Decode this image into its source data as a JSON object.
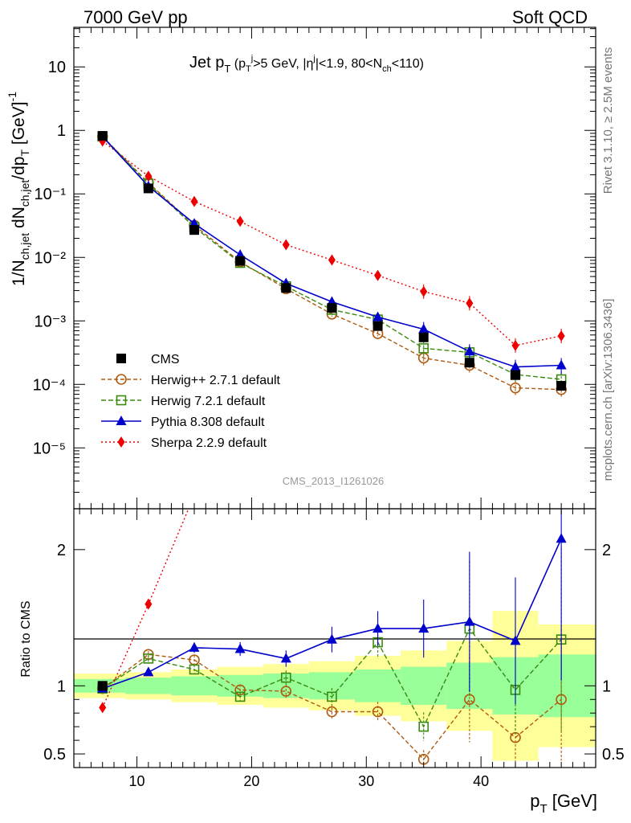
{
  "header": {
    "left": "7000 GeV pp",
    "right": "Soft QCD",
    "side_top": "Rivet 3.1.10, ≥ 2.5M events",
    "side_bottom": "mcplots.cern.ch [arXiv:1306.3436]",
    "analysis_id": "CMS_2013_I1261026"
  },
  "chart_data": {
    "type": "line",
    "title": "Jet pT (pTj>5 GeV, |ηj|<1.9, 80<Nch<110)",
    "x": [
      7,
      11,
      15,
      19,
      23,
      27,
      31,
      35,
      39,
      43,
      47
    ],
    "xlabel": "pT [GeV]",
    "xlim": [
      4.5,
      50
    ],
    "xticks": [
      10,
      20,
      30,
      40
    ],
    "main": {
      "ylabel": "1/Nch,jet dNch,jet/dpT [GeV]⁻¹",
      "yscale": "log",
      "ylim": [
        1.1e-06,
        42
      ],
      "ytick_labels": [
        "10⁻⁵",
        "10⁻⁴",
        "10⁻³",
        "10⁻²",
        "10⁻¹",
        "1",
        "10"
      ],
      "series": [
        {
          "name": "CMS",
          "color": "#000000",
          "marker": "square-filled",
          "values": [
            0.82,
            0.122,
            0.027,
            0.0088,
            0.0033,
            0.0016,
            0.00083,
            0.00055,
            0.00022,
            0.00014,
            9.5e-05
          ]
        },
        {
          "name": "Herwig++ 2.7.1 default",
          "color": "#b05a10",
          "marker": "circle-open",
          "values": [
            0.8,
            0.15,
            0.032,
            0.0085,
            0.0032,
            0.00128,
            0.00063,
            0.00026,
            0.0002,
            8.8e-05,
            8.3e-05
          ]
        },
        {
          "name": "Herwig 7.2.1 default",
          "color": "#3a8a10",
          "marker": "square-open",
          "values": [
            0.8,
            0.145,
            0.03,
            0.0082,
            0.0035,
            0.0015,
            0.00105,
            0.00037,
            0.00032,
            0.000143,
            0.00012
          ]
        },
        {
          "name": "Pythia 8.308 default",
          "color": "#0000cc",
          "marker": "triangle-filled",
          "values": [
            0.8,
            0.132,
            0.034,
            0.011,
            0.0039,
            0.002,
            0.00115,
            0.00074,
            0.00033,
            0.000188,
            0.0002
          ]
        },
        {
          "name": "Sherpa 2.2.9 default",
          "color": "#ee0000",
          "marker": "diamond-filled",
          "values": [
            0.68,
            0.19,
            0.076,
            0.037,
            0.0158,
            0.0091,
            0.0052,
            0.0029,
            0.0019,
            0.00041,
            0.00058
          ]
        }
      ]
    },
    "ratio": {
      "ylabel": "Ratio to CMS",
      "ylim": [
        0.4,
        2.3
      ],
      "ytick_labels": [
        "0.5",
        "1",
        "2"
      ],
      "bin_edges": [
        4.5,
        9,
        13,
        17,
        21,
        25,
        29,
        33,
        37,
        41,
        45,
        50
      ],
      "band_inner": [
        0.05,
        0.06,
        0.07,
        0.08,
        0.09,
        0.1,
        0.12,
        0.14,
        0.17,
        0.21,
        0.23
      ],
      "band_outer": [
        0.09,
        0.1,
        0.12,
        0.14,
        0.16,
        0.18,
        0.22,
        0.26,
        0.33,
        0.55,
        0.45
      ],
      "series": [
        {
          "name": "Herwig++ 2.7.1 default",
          "values": [
            0.98,
            1.23,
            1.19,
            0.97,
            0.96,
            0.81,
            0.81,
            0.46,
            0.9,
            0.62,
            0.9
          ]
        },
        {
          "name": "Herwig 7.2.1 default",
          "values": [
            0.98,
            1.2,
            1.12,
            0.92,
            1.06,
            0.92,
            1.32,
            0.7,
            1.42,
            0.97,
            1.34
          ]
        },
        {
          "name": "Pythia 8.308 default",
          "values": [
            0.98,
            1.1,
            1.28,
            1.27,
            1.2,
            1.34,
            1.42,
            1.42,
            1.47,
            1.33,
            2.08
          ]
        },
        {
          "name": "Sherpa 2.2.9 default",
          "values": [
            0.84,
            1.6,
            2.4,
            null,
            null,
            null,
            null,
            null,
            null,
            null,
            null
          ]
        }
      ]
    }
  }
}
